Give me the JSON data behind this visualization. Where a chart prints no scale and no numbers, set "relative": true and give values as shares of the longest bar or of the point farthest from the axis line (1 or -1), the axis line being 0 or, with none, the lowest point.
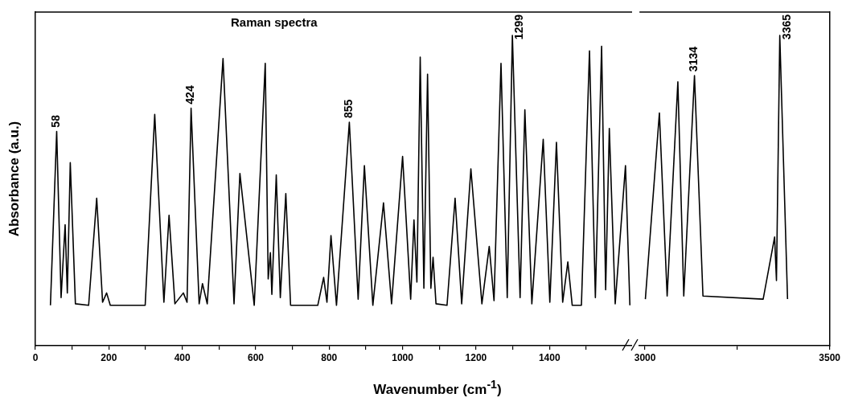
{
  "chart_data": [
    {
      "type": "line",
      "title": "Raman spectra",
      "ylabel": "Absorbance (a.u.)",
      "xlabel": "Wavenumber (cm$^{-1}$)",
      "relative": true,
      "marker": "none",
      "xlim": [
        0,
        1625
      ],
      "xticks": [
        0,
        {
          "value": 100,
          "label": null
        },
        200,
        {
          "value": 300,
          "label": null
        },
        400,
        {
          "value": 500,
          "label": null
        },
        600,
        {
          "value": 700,
          "label": null
        },
        800,
        {
          "value": 900,
          "label": null
        },
        1000,
        {
          "value": 1100,
          "label": null
        },
        1200,
        {
          "value": 1300,
          "label": null
        },
        1400,
        {
          "value": 1500,
          "label": null
        }
      ],
      "annotations": [
        {
          "text": "58",
          "x": 58,
          "y": 0.69
        },
        {
          "text": "424",
          "x": 424,
          "y": 0.765
        },
        {
          "text": "855",
          "x": 855,
          "y": 0.72
        },
        {
          "text": "1299",
          "x": 1299,
          "y": 1.0
        }
      ],
      "series": [
        {
          "color": "#000000",
          "x": [
            41,
            58,
            70,
            81,
            87,
            95,
            109,
            145,
            167,
            183,
            194,
            204,
            299,
            325,
            350,
            364,
            380,
            403,
            413,
            424,
            446,
            455,
            468,
            511,
            541,
            557,
            596,
            626,
            634,
            640,
            644,
            656,
            667,
            682,
            695,
            769,
            785,
            794,
            805,
            820,
            855,
            879,
            896,
            919,
            948,
            970,
            1000,
            1022,
            1031,
            1039,
            1048,
            1058,
            1068,
            1077,
            1083,
            1091,
            1121,
            1143,
            1161,
            1186,
            1216,
            1236,
            1249,
            1268,
            1285,
            1299,
            1320,
            1333,
            1352,
            1383,
            1401,
            1419,
            1436,
            1450,
            1462,
            1487,
            1509,
            1525,
            1542,
            1553,
            1563,
            1579,
            1607,
            1619
          ],
          "values": [
            0.13,
            0.69,
            0.155,
            0.39,
            0.17,
            0.59,
            0.135,
            0.13,
            0.475,
            0.14,
            0.17,
            0.13,
            0.13,
            0.745,
            0.14,
            0.42,
            0.135,
            0.17,
            0.14,
            0.765,
            0.135,
            0.2,
            0.135,
            0.925,
            0.135,
            0.555,
            0.13,
            0.91,
            0.215,
            0.3,
            0.165,
            0.55,
            0.155,
            0.49,
            0.13,
            0.13,
            0.22,
            0.14,
            0.355,
            0.13,
            0.72,
            0.15,
            0.58,
            0.13,
            0.46,
            0.135,
            0.61,
            0.15,
            0.405,
            0.205,
            0.93,
            0.185,
            0.875,
            0.185,
            0.285,
            0.135,
            0.13,
            0.475,
            0.135,
            0.57,
            0.135,
            0.32,
            0.145,
            0.91,
            0.155,
            1.0,
            0.155,
            0.76,
            0.135,
            0.665,
            0.14,
            0.655,
            0.14,
            0.27,
            0.13,
            0.13,
            0.95,
            0.155,
            0.965,
            0.18,
            0.7,
            0.135,
            0.58,
            0.13
          ]
        }
      ]
    },
    {
      "type": "line",
      "relative": true,
      "marker": "none",
      "xlim": [
        2985,
        3500
      ],
      "xticks": [
        3000,
        {
          "value": 3250,
          "label": null
        },
        3500
      ],
      "annotations": [
        {
          "text": "3134",
          "x": 3134,
          "y": 0.87
        },
        {
          "text": "3365",
          "x": 3365,
          "y": 1
        }
      ],
      "series": [
        {
          "color": "#000000",
          "x": [
            3001,
            3039,
            3060,
            3089,
            3105,
            3134,
            3157,
            3320,
            3351,
            3356,
            3365,
            3386
          ],
          "values": [
            0.15,
            0.75,
            0.16,
            0.85,
            0.16,
            0.87,
            0.16,
            0.15,
            0.35,
            0.21,
            1,
            0.15
          ]
        }
      ]
    }
  ]
}
